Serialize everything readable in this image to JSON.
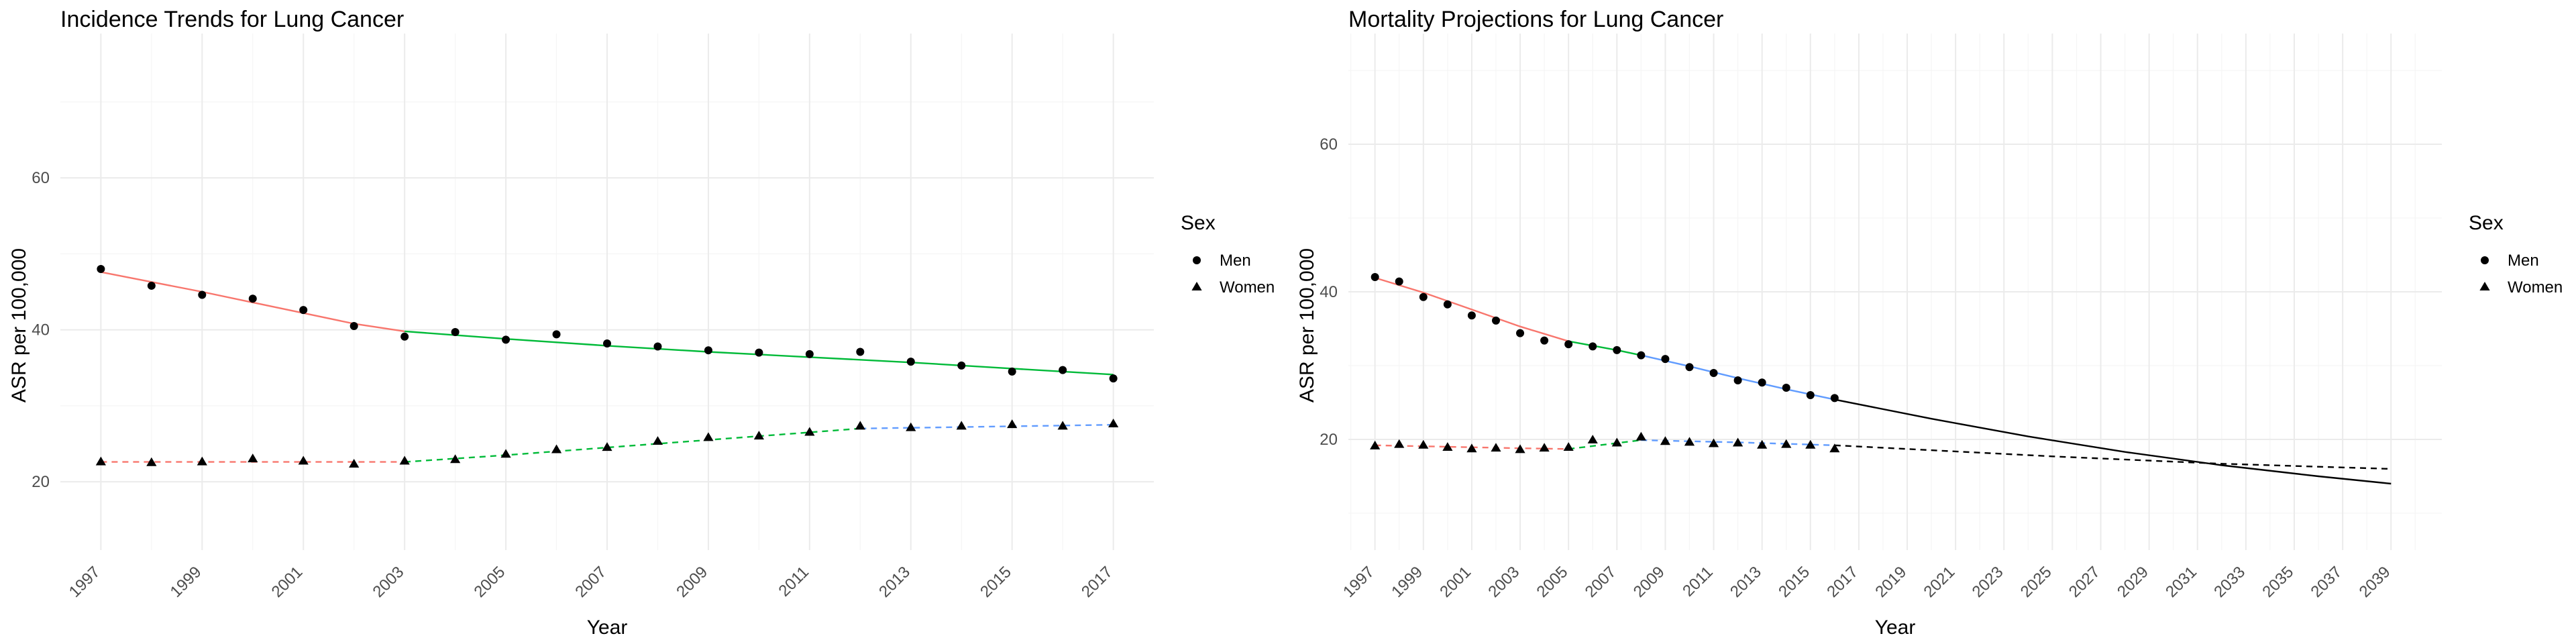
{
  "chart_data": [
    {
      "type": "line",
      "title": "Incidence Trends for Lung Cancer",
      "xlabel": "Year",
      "ylabel": "ASR per 100,000",
      "xlim": [
        1996.2,
        2017.8
      ],
      "ylim": [
        11,
        79
      ],
      "x_tick_labels": [
        "1997",
        "1999",
        "2001",
        "2003",
        "2005",
        "2007",
        "2009",
        "2011",
        "2013",
        "2015",
        "2017"
      ],
      "y_tick_labels": [
        "20",
        "40",
        "60"
      ],
      "grid": true,
      "legend": {
        "title": "Sex",
        "position": "right",
        "entries": [
          {
            "label": "Men",
            "shape": "circle"
          },
          {
            "label": "Women",
            "shape": "triangle"
          }
        ]
      },
      "series": [
        {
          "name": "Men",
          "shape": "circle",
          "points": {
            "x": [
              1997,
              1998,
              1999,
              2000,
              2001,
              2002,
              2003,
              2004,
              2005,
              2006,
              2007,
              2008,
              2009,
              2010,
              2011,
              2012,
              2013,
              2014,
              2015,
              2016,
              2017
            ],
            "y": [
              48.0,
              45.8,
              44.6,
              44.1,
              42.6,
              40.5,
              39.1,
              39.7,
              38.7,
              39.4,
              38.2,
              37.8,
              37.3,
              37.0,
              36.8,
              37.1,
              35.8,
              35.3,
              34.5,
              34.7,
              33.6
            ]
          },
          "fit": [
            {
              "color": "#F8766D",
              "dash": "solid",
              "x": [
                1997,
                1998,
                1999,
                2000,
                2001,
                2002,
                2003
              ],
              "y": [
                47.6,
                46.3,
                45.0,
                43.6,
                42.2,
                40.8,
                39.8
              ]
            },
            {
              "color": "#00BA38",
              "dash": "solid",
              "x": [
                2003,
                2005,
                2007,
                2009,
                2011,
                2013,
                2015,
                2017
              ],
              "y": [
                39.8,
                38.8,
                37.9,
                37.1,
                36.4,
                35.7,
                34.9,
                34.1
              ]
            }
          ]
        },
        {
          "name": "Women",
          "shape": "triangle",
          "points": {
            "x": [
              1997,
              1998,
              1999,
              2000,
              2001,
              2002,
              2003,
              2004,
              2005,
              2006,
              2007,
              2008,
              2009,
              2010,
              2011,
              2012,
              2013,
              2014,
              2015,
              2016,
              2017
            ],
            "y": [
              22.6,
              22.5,
              22.6,
              23.0,
              22.7,
              22.3,
              22.7,
              22.9,
              23.6,
              24.2,
              24.5,
              25.3,
              25.8,
              26.0,
              26.5,
              27.3,
              27.1,
              27.3,
              27.5,
              27.3,
              27.6
            ]
          },
          "fit": [
            {
              "color": "#F8766D",
              "dash": "dashed",
              "x": [
                1997,
                2000,
                2003
              ],
              "y": [
                22.6,
                22.6,
                22.6
              ]
            },
            {
              "color": "#00BA38",
              "dash": "dashed",
              "x": [
                2003,
                2005,
                2007,
                2009,
                2011,
                2012
              ],
              "y": [
                22.6,
                23.5,
                24.5,
                25.5,
                26.5,
                27.0
              ]
            },
            {
              "color": "#619CFF",
              "dash": "dashed",
              "x": [
                2012,
                2014,
                2017
              ],
              "y": [
                27.0,
                27.2,
                27.5
              ]
            }
          ]
        }
      ]
    },
    {
      "type": "line",
      "title": "Mortality Projections for Lung Cancer",
      "xlabel": "Year",
      "ylabel": "ASR per 100,000",
      "xlim": [
        1995.9,
        2041.1
      ],
      "ylim": [
        5,
        75
      ],
      "x_tick_labels": [
        "1997",
        "1999",
        "2001",
        "2003",
        "2005",
        "2007",
        "2009",
        "2011",
        "2013",
        "2015",
        "2017",
        "2019",
        "2021",
        "2023",
        "2025",
        "2027",
        "2029",
        "2031",
        "2033",
        "2035",
        "2037",
        "2039"
      ],
      "y_tick_labels": [
        "20",
        "40",
        "60"
      ],
      "grid": true,
      "legend": {
        "title": "Sex",
        "position": "right",
        "entries": [
          {
            "label": "Men",
            "shape": "circle"
          },
          {
            "label": "Women",
            "shape": "triangle"
          }
        ]
      },
      "series": [
        {
          "name": "Men",
          "shape": "circle",
          "points": {
            "x": [
              1997,
              1998,
              1999,
              2000,
              2001,
              2002,
              2003,
              2004,
              2005,
              2006,
              2007,
              2008,
              2009,
              2010,
              2011,
              2012,
              2013,
              2014,
              2015,
              2016
            ],
            "y": [
              42.0,
              41.4,
              39.3,
              38.3,
              36.8,
              36.1,
              34.4,
              33.4,
              32.9,
              32.6,
              32.1,
              31.4,
              30.9,
              29.8,
              29.0,
              28.0,
              27.7,
              27.0,
              26.0,
              25.6
            ]
          },
          "fit": [
            {
              "color": "#F8766D",
              "dash": "solid",
              "x": [
                1997,
                1999,
                2001,
                2003,
                2005
              ],
              "y": [
                41.9,
                39.9,
                37.6,
                35.3,
                33.3
              ]
            },
            {
              "color": "#00BA38",
              "dash": "solid",
              "x": [
                2005,
                2006,
                2007,
                2008
              ],
              "y": [
                33.3,
                32.7,
                32.1,
                31.4
              ]
            },
            {
              "color": "#619CFF",
              "dash": "solid",
              "x": [
                2008,
                2010,
                2012,
                2014,
                2016
              ],
              "y": [
                31.4,
                29.9,
                28.3,
                26.8,
                25.4
              ]
            },
            {
              "color": "#000000",
              "dash": "solid",
              "x": [
                2016,
                2020,
                2024,
                2028,
                2032,
                2036,
                2039
              ],
              "y": [
                25.4,
                22.8,
                20.4,
                18.3,
                16.5,
                15.0,
                14.0
              ]
            }
          ]
        },
        {
          "name": "Women",
          "shape": "triangle",
          "points": {
            "x": [
              1997,
              1998,
              1999,
              2000,
              2001,
              2002,
              2003,
              2004,
              2005,
              2006,
              2007,
              2008,
              2009,
              2010,
              2011,
              2012,
              2013,
              2014,
              2015,
              2016
            ],
            "y": [
              19.1,
              19.3,
              19.2,
              18.9,
              18.7,
              18.8,
              18.6,
              18.8,
              18.9,
              19.9,
              19.5,
              20.3,
              19.7,
              19.6,
              19.4,
              19.5,
              19.2,
              19.3,
              19.2,
              18.7
            ]
          },
          "fit": [
            {
              "color": "#F8766D",
              "dash": "dashed",
              "x": [
                1997,
                2000,
                2003,
                2005
              ],
              "y": [
                19.2,
                19.0,
                18.8,
                18.7
              ]
            },
            {
              "color": "#00BA38",
              "dash": "dashed",
              "x": [
                2005,
                2007,
                2008
              ],
              "y": [
                18.7,
                19.5,
                19.9
              ]
            },
            {
              "color": "#619CFF",
              "dash": "dashed",
              "x": [
                2008,
                2012,
                2016
              ],
              "y": [
                19.9,
                19.6,
                19.2
              ]
            },
            {
              "color": "#000000",
              "dash": "dashed",
              "x": [
                2016,
                2025,
                2032,
                2039
              ],
              "y": [
                19.2,
                17.7,
                16.7,
                16.0
              ]
            }
          ]
        }
      ]
    }
  ]
}
